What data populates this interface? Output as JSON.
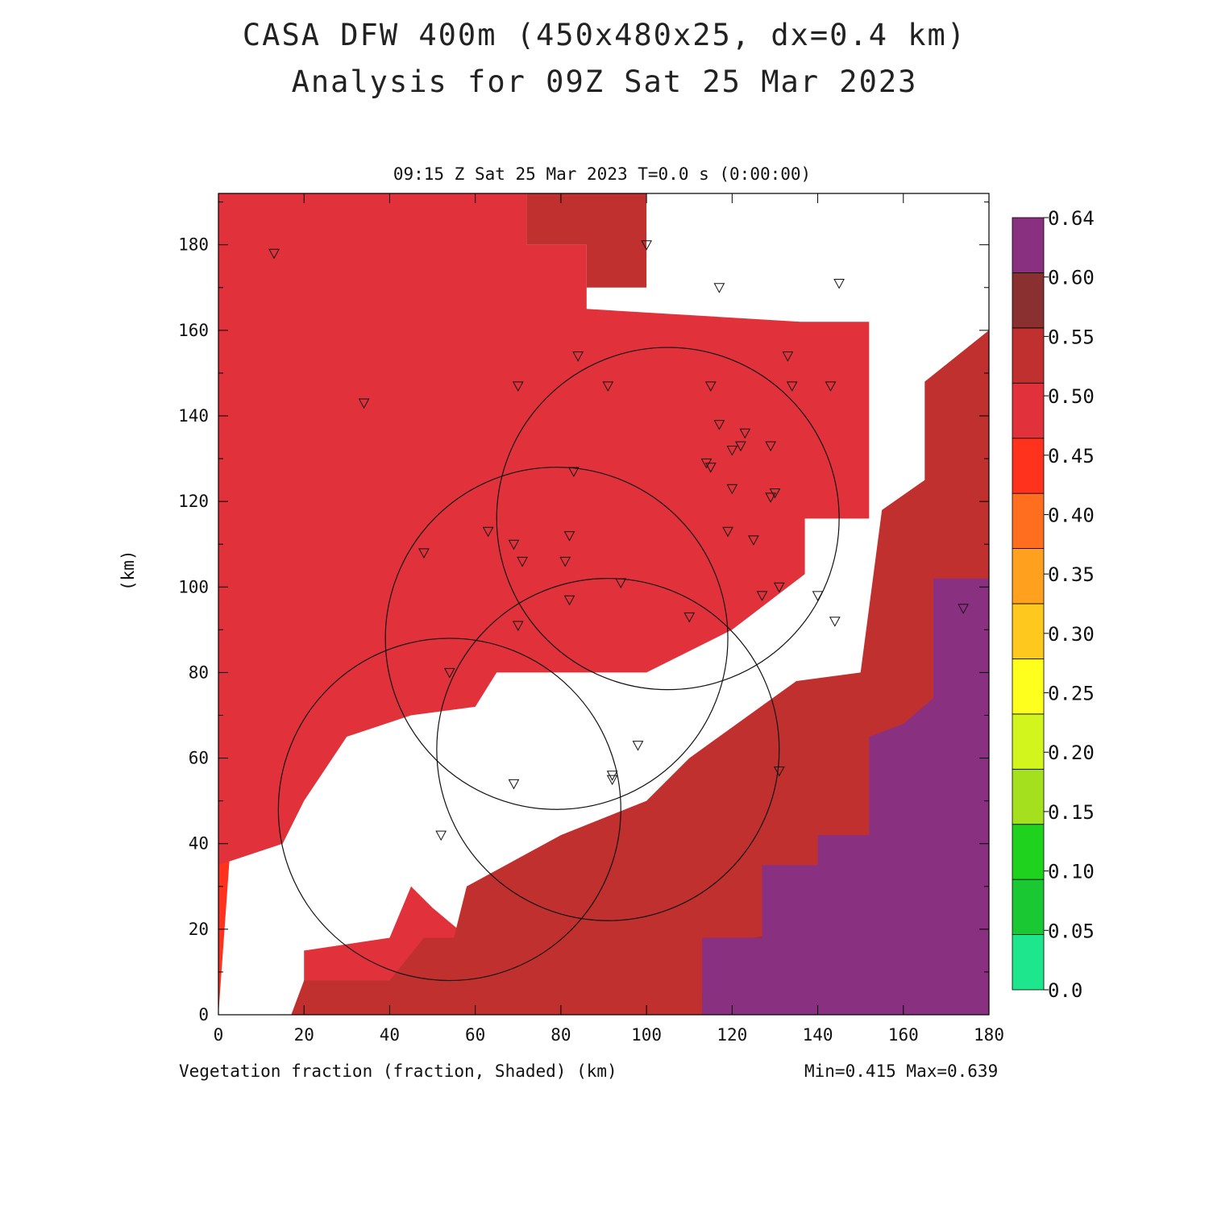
{
  "header": {
    "title_line1": "CASA DFW 400m (450x480x25, dx=0.4 km)",
    "title_line2": "Analysis for 09Z Sat 25 Mar 2023"
  },
  "plot": {
    "subtitle": "09:15 Z Sat 25 Mar 2023   T=0.0 s (0:00:00)",
    "footer_left": "Vegetation fraction (fraction, Shaded)  (km)",
    "footer_right": "Min=0.415 Max=0.639",
    "ylabel": "(km)"
  },
  "chart_data": {
    "type": "heatmap",
    "field": "Vegetation fraction",
    "units": "fraction",
    "xlabel": "(km)",
    "ylabel": "(km)",
    "xlim": [
      0,
      180
    ],
    "ylim": [
      0,
      192
    ],
    "xticks": [
      0,
      20,
      40,
      60,
      80,
      100,
      120,
      140,
      160,
      180
    ],
    "yticks": [
      0,
      20,
      40,
      60,
      80,
      100,
      120,
      140,
      160,
      180
    ],
    "min": 0.415,
    "max": 0.639,
    "colorbar": {
      "levels": [
        "0.0",
        "0.05",
        "0.10",
        "0.15",
        "0.20",
        "0.25",
        "0.30",
        "0.35",
        "0.40",
        "0.45",
        "0.50",
        "0.55",
        "0.60",
        "0.64"
      ],
      "colors": [
        "#1ee68c",
        "#19c832",
        "#1ed21e",
        "#a5e01e",
        "#d2f51e",
        "#ffff1e",
        "#ffc81e",
        "#ffa01e",
        "#ff6e1e",
        "#ff321e",
        "#e1323c",
        "#c0302e",
        "#8a3030",
        "#8a3080"
      ]
    },
    "regions": [
      {
        "value_band": "0.40-0.45",
        "color": "#ff321e",
        "polygon": [
          [
            0,
            0
          ],
          [
            0,
            192
          ],
          [
            46,
            192
          ],
          [
            46,
            165
          ],
          [
            54,
            160
          ],
          [
            54,
            144
          ],
          [
            75,
            146
          ],
          [
            150,
            146
          ],
          [
            150,
            118
          ],
          [
            122,
            114
          ],
          [
            110,
            100
          ],
          [
            45,
            100
          ],
          [
            40,
            94
          ],
          [
            32,
            68
          ],
          [
            20,
            60
          ],
          [
            16,
            50
          ],
          [
            3,
            42
          ],
          [
            0,
            0
          ]
        ]
      },
      {
        "value_band": "0.45-0.50",
        "color": "#e1323c",
        "polygon": [
          [
            46,
            192
          ],
          [
            72,
            192
          ],
          [
            72,
            180
          ],
          [
            86,
            180
          ],
          [
            86,
            165
          ],
          [
            136,
            162
          ],
          [
            152,
            162
          ],
          [
            152,
            116
          ],
          [
            137,
            116
          ],
          [
            137,
            103
          ],
          [
            120,
            90
          ],
          [
            100,
            80
          ],
          [
            65,
            80
          ],
          [
            60,
            72
          ],
          [
            45,
            70
          ],
          [
            30,
            65
          ],
          [
            20,
            50
          ],
          [
            15,
            40
          ],
          [
            0,
            35
          ],
          [
            0,
            0
          ],
          [
            20,
            0
          ],
          [
            20,
            15
          ],
          [
            40,
            18
          ],
          [
            45,
            30
          ],
          [
            50,
            25
          ],
          [
            56,
            20
          ],
          [
            56,
            0
          ],
          [
            0,
            0
          ],
          [
            0,
            192
          ],
          [
            46,
            192
          ]
        ]
      },
      {
        "value_band": "0.50-0.55",
        "color": "#c0302e",
        "polygon": [
          [
            72,
            192
          ],
          [
            180,
            192
          ],
          [
            180,
            160
          ],
          [
            165,
            148
          ],
          [
            165,
            125
          ],
          [
            155,
            118
          ],
          [
            150,
            80
          ],
          [
            135,
            78
          ],
          [
            110,
            60
          ],
          [
            100,
            50
          ],
          [
            80,
            42
          ],
          [
            58,
            30
          ],
          [
            55,
            18
          ],
          [
            48,
            18
          ],
          [
            40,
            8
          ],
          [
            20,
            8
          ],
          [
            17,
            0
          ],
          [
            113,
            0
          ],
          [
            135,
            0
          ],
          [
            135,
            18
          ],
          [
            140,
            20
          ],
          [
            152,
            20
          ],
          [
            155,
            60
          ],
          [
            170,
            60
          ],
          [
            175,
            70
          ],
          [
            180,
            80
          ],
          [
            180,
            192
          ],
          [
            100,
            192
          ],
          [
            100,
            170
          ],
          [
            86,
            170
          ],
          [
            86,
            180
          ],
          [
            72,
            180
          ]
        ]
      },
      {
        "value_band": "0.55-0.60",
        "color": "#8a3030",
        "polygon": [
          [
            180,
            160
          ],
          [
            180,
            0
          ],
          [
            113,
            0
          ],
          [
            113,
            5
          ],
          [
            125,
            5
          ],
          [
            125,
            18
          ],
          [
            140,
            20
          ],
          [
            152,
            20
          ],
          [
            155,
            42
          ],
          [
            165,
            45
          ],
          [
            170,
            60
          ],
          [
            175,
            72
          ],
          [
            180,
            80
          ]
        ]
      },
      {
        "value_band": "0.60-0.64",
        "color": "#8a3080",
        "polygon": [
          [
            180,
            120
          ],
          [
            180,
            0
          ],
          [
            113,
            0
          ],
          [
            113,
            18
          ],
          [
            127,
            18
          ],
          [
            127,
            35
          ],
          [
            140,
            35
          ],
          [
            140,
            42
          ],
          [
            152,
            42
          ],
          [
            152,
            65
          ],
          [
            160,
            68
          ],
          [
            167,
            74
          ],
          [
            167,
            102
          ],
          [
            180,
            102
          ]
        ]
      }
    ],
    "range_rings_km": [
      {
        "center": [
          54,
          48
        ],
        "radius": 40
      },
      {
        "center": [
          79,
          88
        ],
        "radius": 40
      },
      {
        "center": [
          105,
          116
        ],
        "radius": 40
      },
      {
        "center": [
          91,
          62
        ],
        "radius": 40
      }
    ],
    "stations": [
      [
        13,
        178
      ],
      [
        100,
        180
      ],
      [
        117,
        170
      ],
      [
        145,
        171
      ],
      [
        34,
        143
      ],
      [
        70,
        147
      ],
      [
        84,
        154
      ],
      [
        91,
        147
      ],
      [
        115,
        147
      ],
      [
        133,
        154
      ],
      [
        134,
        147
      ],
      [
        143,
        147
      ],
      [
        117,
        138
      ],
      [
        123,
        136
      ],
      [
        120,
        132
      ],
      [
        122,
        133
      ],
      [
        129,
        133
      ],
      [
        114,
        129
      ],
      [
        115,
        128
      ],
      [
        120,
        123
      ],
      [
        130,
        122
      ],
      [
        129,
        121
      ],
      [
        83,
        127
      ],
      [
        63,
        113
      ],
      [
        69,
        110
      ],
      [
        71,
        106
      ],
      [
        48,
        108
      ],
      [
        81,
        106
      ],
      [
        82,
        112
      ],
      [
        94,
        101
      ],
      [
        82,
        97
      ],
      [
        70,
        91
      ],
      [
        110,
        93
      ],
      [
        119,
        113
      ],
      [
        125,
        111
      ],
      [
        127,
        98
      ],
      [
        131,
        100
      ],
      [
        140,
        98
      ],
      [
        144,
        92
      ],
      [
        174,
        95
      ],
      [
        54,
        80
      ],
      [
        98,
        63
      ],
      [
        92,
        56
      ],
      [
        92,
        55
      ],
      [
        69,
        54
      ],
      [
        52,
        42
      ],
      [
        131,
        57
      ]
    ]
  }
}
